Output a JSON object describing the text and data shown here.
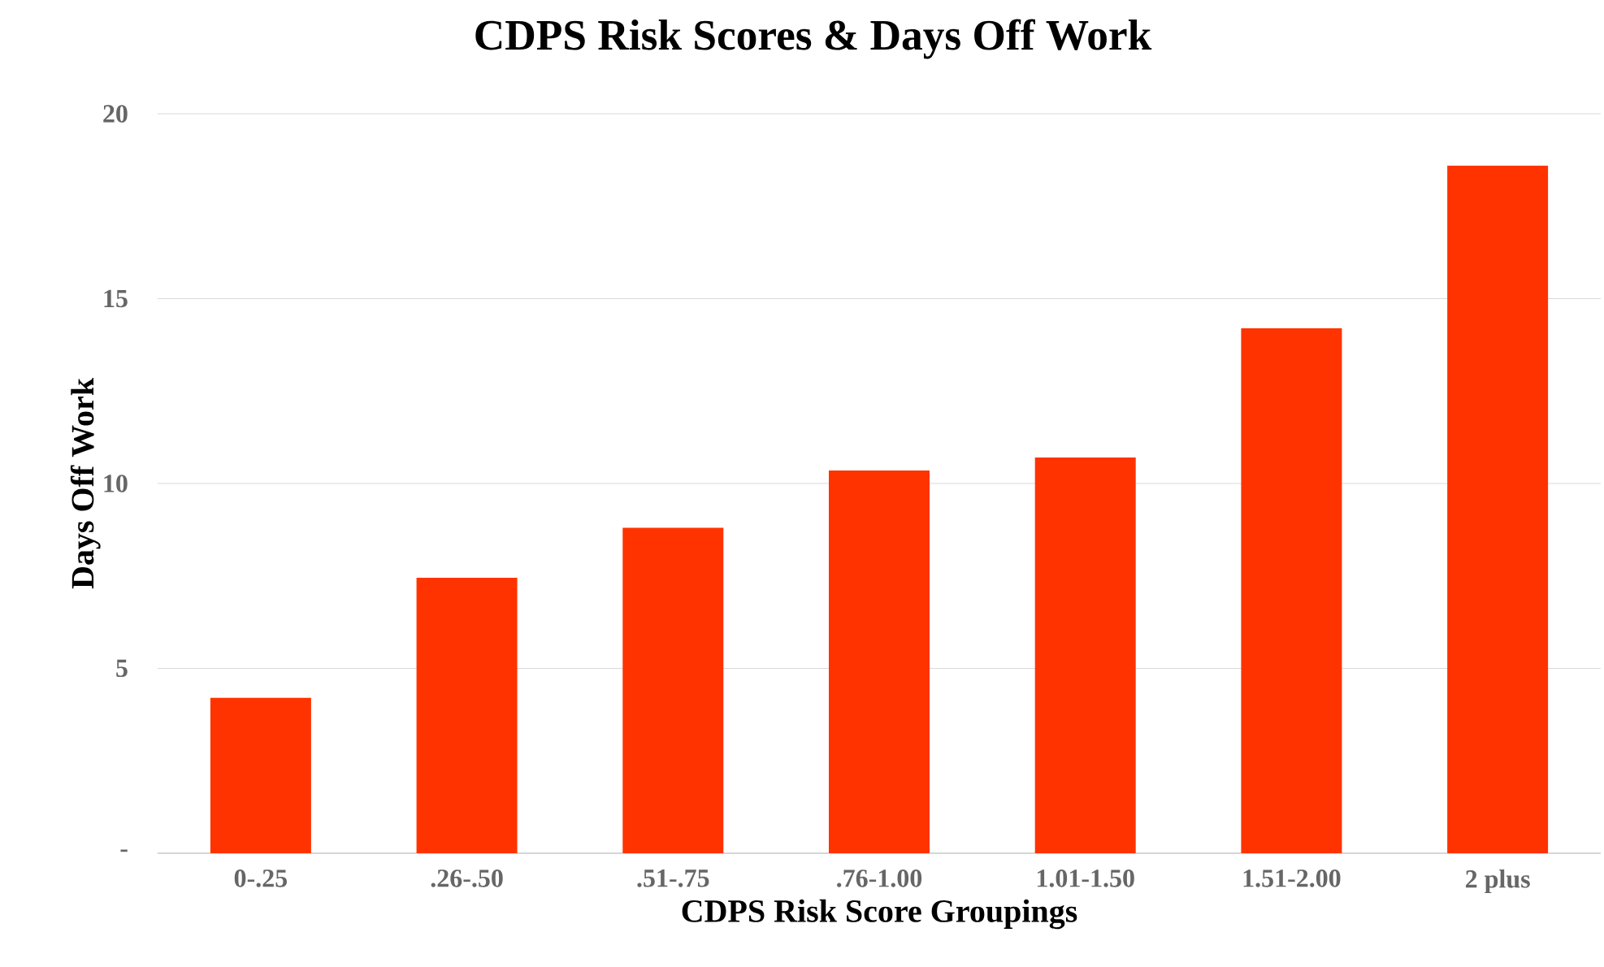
{
  "chart_data": {
    "type": "bar",
    "title": "CDPS Risk Scores & Days Off Work",
    "xlabel": "CDPS Risk Score Groupings",
    "ylabel": "Days Off Work",
    "categories": [
      "0-.25",
      ".26-.50",
      ".51-.75",
      ".76-1.00",
      "1.01-1.50",
      "1.51-2.00",
      "2 plus"
    ],
    "values": [
      4.2,
      7.45,
      8.8,
      10.35,
      10.7,
      14.2,
      18.6
    ],
    "color": "#ff3300",
    "ylim": [
      0,
      20
    ],
    "yticks": [
      {
        "value": 0,
        "label": "-"
      },
      5,
      10,
      15,
      20
    ],
    "grid": "y"
  }
}
